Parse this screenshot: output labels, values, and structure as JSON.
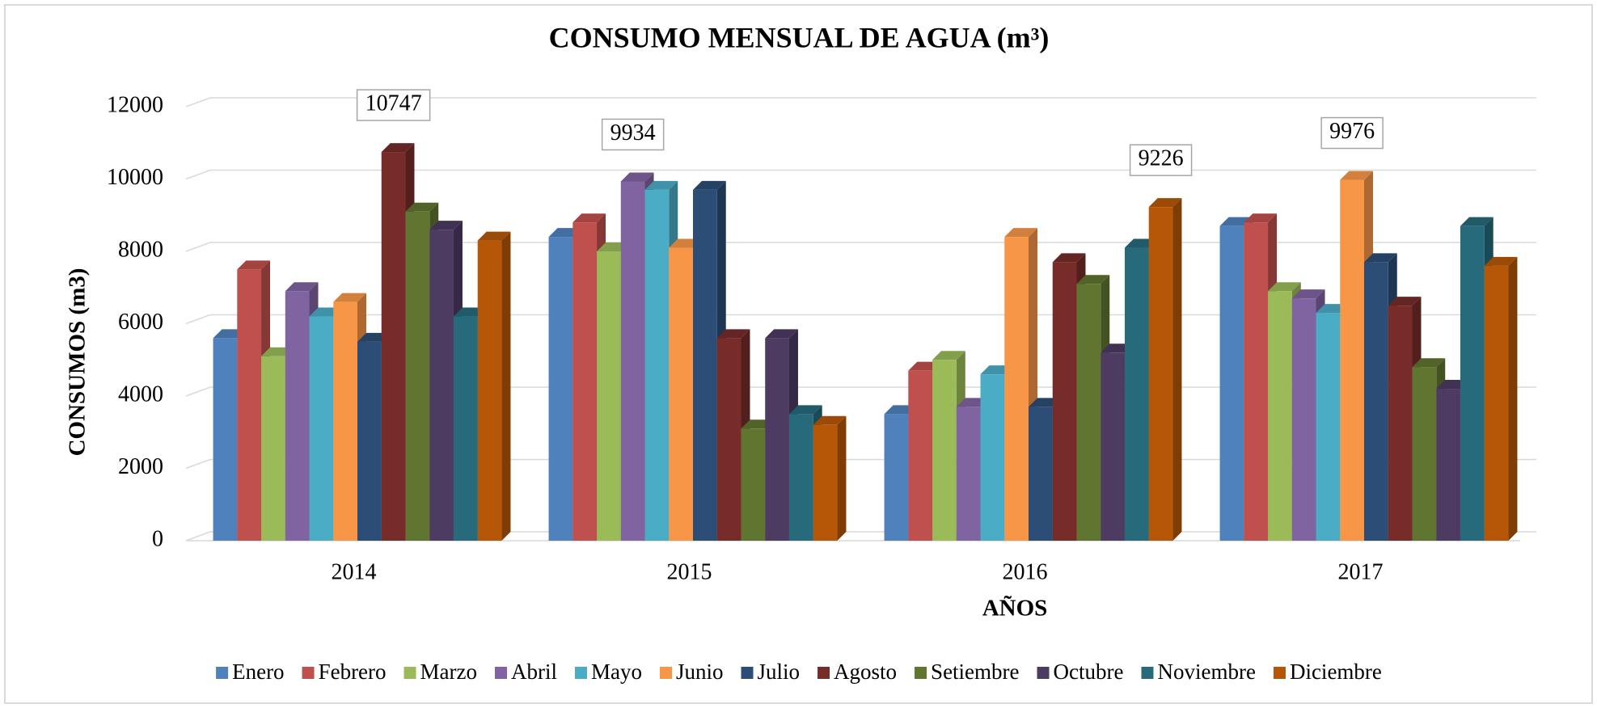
{
  "chart_data": {
    "type": "bar3d",
    "title": "CONSUMO MENSUAL DE AGUA (m³)",
    "x_label": "AÑOS",
    "y_label": "CONSUMOS (m3)",
    "categories": [
      "2014",
      "2015",
      "2016",
      "2017"
    ],
    "series": [
      {
        "name": "Enero",
        "color": "#4f81bd",
        "values": [
          5600,
          8400,
          3500,
          8700
        ]
      },
      {
        "name": "Febrero",
        "color": "#c0504d",
        "values": [
          7500,
          8800,
          4700,
          8800
        ]
      },
      {
        "name": "Marzo",
        "color": "#9bbb59",
        "values": [
          5100,
          8000,
          5000,
          6900
        ]
      },
      {
        "name": "Abril",
        "color": "#8064a2",
        "values": [
          6900,
          9934,
          3700,
          6700
        ]
      },
      {
        "name": "Mayo",
        "color": "#4bacc6",
        "values": [
          6200,
          9700,
          4600,
          6300
        ]
      },
      {
        "name": "Junio",
        "color": "#f79646",
        "values": [
          6600,
          8100,
          8400,
          9976
        ]
      },
      {
        "name": "Julio",
        "color": "#2c4d75",
        "values": [
          5500,
          9700,
          3700,
          7700
        ]
      },
      {
        "name": "Agosto",
        "color": "#772c2a",
        "values": [
          10747,
          5600,
          7700,
          6500
        ]
      },
      {
        "name": "Setiembre",
        "color": "#5f7530",
        "values": [
          9100,
          3100,
          7100,
          4800
        ]
      },
      {
        "name": "Octubre",
        "color": "#4d3b62",
        "values": [
          8600,
          5600,
          5200,
          4200
        ]
      },
      {
        "name": "Noviembre",
        "color": "#276a7c",
        "values": [
          6200,
          3500,
          8100,
          8700
        ]
      },
      {
        "name": "Diciembre",
        "color": "#b65708",
        "values": [
          8300,
          3200,
          9226,
          7600
        ]
      }
    ],
    "ylim": [
      0,
      12000
    ],
    "yticks": [
      0,
      2000,
      4000,
      6000,
      8000,
      10000,
      12000
    ],
    "grid": true,
    "legend": "bottom"
  }
}
